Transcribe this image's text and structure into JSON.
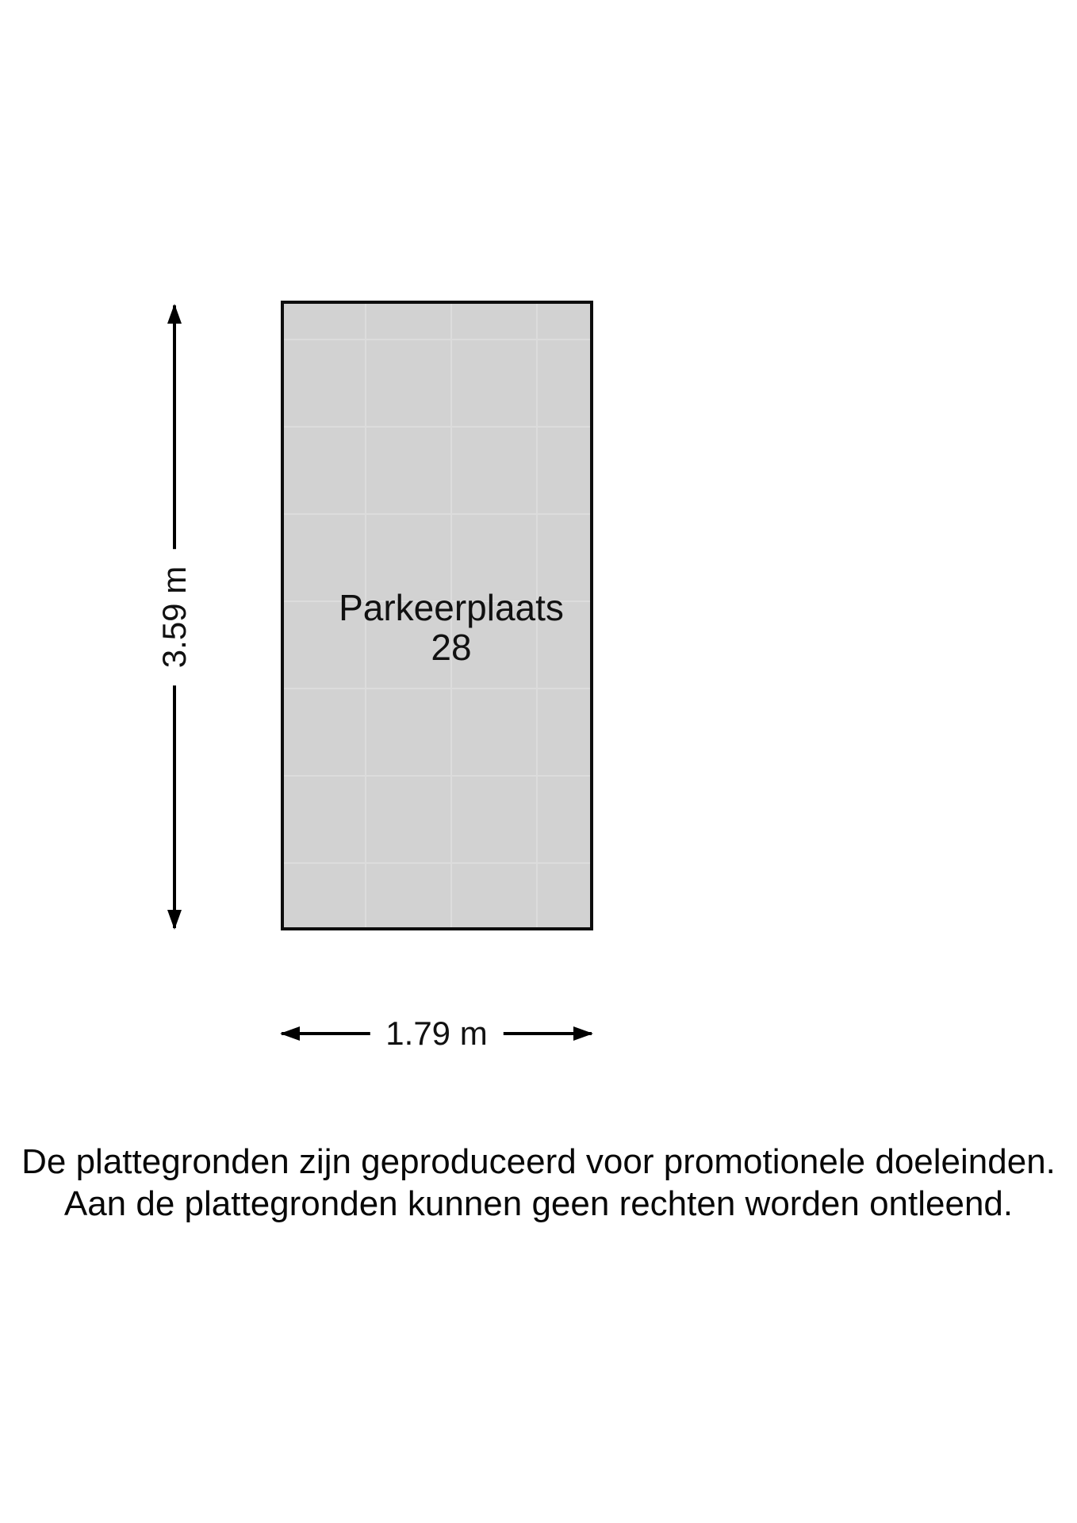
{
  "floorplan": {
    "space_label": "Parkeerplaats",
    "space_number": "28",
    "height_label": "3.59 m",
    "width_label": "1.79 m"
  },
  "disclaimer": {
    "line1": "De plattegronden zijn geproduceerd voor promotionele doeleinden.",
    "line2": "Aan de plattegronden kunnen geen rechten worden ontleend."
  },
  "colors": {
    "page-bg": "#ffffff",
    "space-fill": "#d2d2d2",
    "space-grid": "#dcdcdc",
    "outline": "#0d0d0d",
    "dim": "#000000",
    "ink": "#111111"
  }
}
